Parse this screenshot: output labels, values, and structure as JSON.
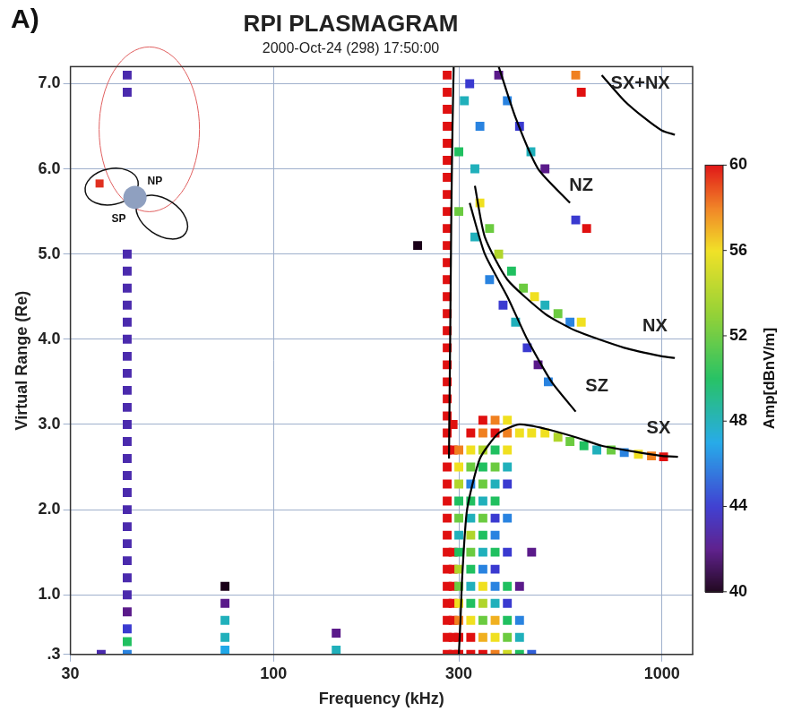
{
  "chart_data": {
    "type": "scatter",
    "panel": "A)",
    "title": "RPI PLASMAGRAM",
    "subtitle": "2000-Oct-24 (298) 17:50:00",
    "x_label": "Frequency (kHz)",
    "y_label": "Virtual Range (Re)",
    "log": "x",
    "grid": true,
    "xlim": [
      30,
      1200
    ],
    "xticks": [
      30,
      100,
      300,
      1000
    ],
    "ylim": [
      0.3,
      7.2
    ],
    "yticks": [
      {
        "value": 0.3,
        "label": ".3"
      },
      {
        "value": 1,
        "label": "1.0"
      },
      {
        "value": 2,
        "label": "2.0"
      },
      {
        "value": 3,
        "label": "3.0"
      },
      {
        "value": 4,
        "label": "4.0"
      },
      {
        "value": 5,
        "label": "5.0"
      },
      {
        "value": 6,
        "label": "6.0"
      },
      {
        "value": 7,
        "label": "7.0"
      }
    ],
    "colorbar": {
      "label": "Amp[dBnV/m]",
      "range": [
        40,
        60
      ],
      "ticks": [
        40,
        44,
        48,
        52,
        56,
        60
      ]
    },
    "cells": [
      [
        36,
        0.3,
        43
      ],
      [
        42,
        0.3,
        46
      ],
      [
        42,
        0.45,
        50
      ],
      [
        42,
        0.6,
        44
      ],
      [
        42,
        0.8,
        42
      ],
      [
        42,
        1.0,
        43
      ],
      [
        42,
        1.2,
        43
      ],
      [
        42,
        1.4,
        43
      ],
      [
        42,
        1.6,
        43
      ],
      [
        42,
        1.8,
        43
      ],
      [
        42,
        2.0,
        43
      ],
      [
        42,
        2.2,
        43
      ],
      [
        42,
        2.4,
        43
      ],
      [
        42,
        2.6,
        43
      ],
      [
        42,
        2.8,
        43
      ],
      [
        42,
        3.0,
        43
      ],
      [
        42,
        3.2,
        43
      ],
      [
        42,
        3.4,
        43
      ],
      [
        42,
        3.6,
        43
      ],
      [
        42,
        3.8,
        43
      ],
      [
        42,
        4.0,
        43
      ],
      [
        42,
        4.2,
        43
      ],
      [
        42,
        4.4,
        43
      ],
      [
        42,
        4.6,
        43
      ],
      [
        42,
        4.8,
        43
      ],
      [
        42,
        5.0,
        43
      ],
      [
        42,
        6.9,
        43
      ],
      [
        42,
        7.1,
        43
      ],
      [
        75,
        1.1,
        40
      ],
      [
        75,
        0.9,
        42
      ],
      [
        75,
        0.7,
        48
      ],
      [
        75,
        0.5,
        48
      ],
      [
        75,
        0.35,
        47
      ],
      [
        145,
        0.55,
        42
      ],
      [
        145,
        0.35,
        48
      ],
      [
        235,
        5.1,
        40
      ],
      [
        280,
        0.3,
        60
      ],
      [
        280,
        0.5,
        60
      ],
      [
        280,
        0.7,
        60
      ],
      [
        280,
        0.9,
        60
      ],
      [
        280,
        1.1,
        60
      ],
      [
        280,
        1.3,
        60
      ],
      [
        280,
        1.5,
        60
      ],
      [
        280,
        1.7,
        60
      ],
      [
        280,
        1.9,
        60
      ],
      [
        280,
        2.1,
        60
      ],
      [
        280,
        2.3,
        60
      ],
      [
        280,
        2.5,
        60
      ],
      [
        280,
        2.7,
        60
      ],
      [
        280,
        2.9,
        60
      ],
      [
        280,
        3.1,
        60
      ],
      [
        280,
        3.3,
        60
      ],
      [
        280,
        3.5,
        60
      ],
      [
        280,
        3.7,
        60
      ],
      [
        280,
        3.9,
        60
      ],
      [
        280,
        4.1,
        60
      ],
      [
        280,
        4.3,
        60
      ],
      [
        280,
        4.5,
        60
      ],
      [
        280,
        4.7,
        60
      ],
      [
        280,
        4.9,
        60
      ],
      [
        280,
        5.1,
        60
      ],
      [
        280,
        5.3,
        60
      ],
      [
        280,
        5.5,
        60
      ],
      [
        280,
        5.7,
        60
      ],
      [
        280,
        5.9,
        60
      ],
      [
        280,
        6.1,
        60
      ],
      [
        280,
        6.3,
        60
      ],
      [
        280,
        6.5,
        60
      ],
      [
        280,
        6.7,
        60
      ],
      [
        280,
        6.9,
        60
      ],
      [
        280,
        7.1,
        60
      ],
      [
        290,
        0.3,
        60
      ],
      [
        290,
        0.5,
        60
      ],
      [
        290,
        0.7,
        60
      ],
      [
        290,
        0.9,
        60
      ],
      [
        290,
        1.1,
        60
      ],
      [
        290,
        1.3,
        60
      ],
      [
        290,
        1.5,
        60
      ],
      [
        290,
        2.7,
        60
      ],
      [
        290,
        3.0,
        60
      ],
      [
        300,
        0.3,
        60
      ],
      [
        322,
        0.3,
        60
      ],
      [
        346,
        0.3,
        60
      ],
      [
        372,
        0.3,
        58
      ],
      [
        400,
        0.3,
        55
      ],
      [
        430,
        0.3,
        50
      ],
      [
        462,
        0.3,
        45
      ],
      [
        300,
        0.5,
        60
      ],
      [
        322,
        0.5,
        60
      ],
      [
        346,
        0.5,
        57
      ],
      [
        372,
        0.5,
        56
      ],
      [
        400,
        0.5,
        52
      ],
      [
        430,
        0.5,
        48
      ],
      [
        300,
        0.7,
        58
      ],
      [
        322,
        0.7,
        56
      ],
      [
        346,
        0.7,
        52
      ],
      [
        372,
        0.7,
        57
      ],
      [
        400,
        0.7,
        50
      ],
      [
        430,
        0.7,
        46
      ],
      [
        300,
        0.9,
        56
      ],
      [
        322,
        0.9,
        50
      ],
      [
        346,
        0.9,
        54
      ],
      [
        372,
        0.9,
        48
      ],
      [
        400,
        0.9,
        44
      ],
      [
        300,
        1.1,
        52
      ],
      [
        322,
        1.1,
        48
      ],
      [
        346,
        1.1,
        56
      ],
      [
        372,
        1.1,
        46
      ],
      [
        400,
        1.1,
        50
      ],
      [
        430,
        1.1,
        42
      ],
      [
        300,
        1.3,
        54
      ],
      [
        322,
        1.3,
        50
      ],
      [
        346,
        1.3,
        46
      ],
      [
        372,
        1.3,
        44
      ],
      [
        300,
        1.5,
        50
      ],
      [
        322,
        1.5,
        52
      ],
      [
        346,
        1.5,
        48
      ],
      [
        372,
        1.5,
        50
      ],
      [
        400,
        1.5,
        44
      ],
      [
        462,
        1.5,
        42
      ],
      [
        300,
        1.7,
        48
      ],
      [
        322,
        1.7,
        54
      ],
      [
        346,
        1.7,
        50
      ],
      [
        372,
        1.7,
        46
      ],
      [
        300,
        1.9,
        52
      ],
      [
        322,
        1.9,
        48
      ],
      [
        346,
        1.9,
        52
      ],
      [
        372,
        1.9,
        44
      ],
      [
        400,
        1.9,
        46
      ],
      [
        300,
        2.1,
        50
      ],
      [
        322,
        2.1,
        50
      ],
      [
        346,
        2.1,
        48
      ],
      [
        372,
        2.1,
        50
      ],
      [
        300,
        2.3,
        54
      ],
      [
        322,
        2.3,
        46
      ],
      [
        346,
        2.3,
        52
      ],
      [
        372,
        2.3,
        48
      ],
      [
        400,
        2.3,
        44
      ],
      [
        300,
        2.5,
        56
      ],
      [
        322,
        2.5,
        52
      ],
      [
        346,
        2.5,
        50
      ],
      [
        372,
        2.5,
        52
      ],
      [
        400,
        2.5,
        48
      ],
      [
        300,
        2.7,
        58
      ],
      [
        322,
        2.7,
        56
      ],
      [
        346,
        2.7,
        54
      ],
      [
        372,
        2.7,
        50
      ],
      [
        400,
        2.7,
        56
      ],
      [
        322,
        2.9,
        60
      ],
      [
        346,
        2.9,
        58
      ],
      [
        372,
        2.9,
        60
      ],
      [
        400,
        2.9,
        58
      ],
      [
        430,
        2.9,
        56
      ],
      [
        462,
        2.9,
        56
      ],
      [
        346,
        3.05,
        60
      ],
      [
        372,
        3.05,
        58
      ],
      [
        400,
        3.05,
        56
      ],
      [
        500,
        2.9,
        56
      ],
      [
        540,
        2.85,
        54
      ],
      [
        580,
        2.8,
        52
      ],
      [
        630,
        2.75,
        50
      ],
      [
        680,
        2.7,
        48
      ],
      [
        740,
        2.7,
        52
      ],
      [
        800,
        2.67,
        46
      ],
      [
        870,
        2.65,
        56
      ],
      [
        940,
        2.63,
        58
      ],
      [
        1010,
        2.62,
        60
      ],
      [
        340,
        5.6,
        56
      ],
      [
        360,
        5.3,
        52
      ],
      [
        380,
        5.0,
        54
      ],
      [
        410,
        4.8,
        50
      ],
      [
        440,
        4.6,
        52
      ],
      [
        470,
        4.5,
        56
      ],
      [
        500,
        4.4,
        48
      ],
      [
        540,
        4.3,
        52
      ],
      [
        580,
        4.2,
        46
      ],
      [
        620,
        4.2,
        56
      ],
      [
        330,
        5.2,
        48
      ],
      [
        360,
        4.7,
        46
      ],
      [
        390,
        4.4,
        44
      ],
      [
        420,
        4.2,
        48
      ],
      [
        450,
        3.9,
        44
      ],
      [
        480,
        3.7,
        42
      ],
      [
        510,
        3.5,
        46
      ],
      [
        400,
        6.8,
        46
      ],
      [
        430,
        6.5,
        44
      ],
      [
        460,
        6.2,
        48
      ],
      [
        500,
        6.0,
        42
      ],
      [
        300,
        5.5,
        52
      ],
      [
        300,
        6.2,
        50
      ],
      [
        310,
        6.8,
        48
      ],
      [
        320,
        7.0,
        44
      ],
      [
        340,
        6.5,
        46
      ],
      [
        330,
        6.0,
        48
      ],
      [
        380,
        7.1,
        42
      ],
      [
        600,
        7.1,
        58
      ],
      [
        620,
        6.9,
        60
      ],
      [
        640,
        5.3,
        60
      ],
      [
        600,
        5.4,
        44
      ]
    ],
    "series": [
      {
        "color": "#000000",
        "x": [
          283,
          285,
          287,
          289,
          291
        ],
        "values": [
          2.6,
          4.0,
          5.5,
          6.5,
          7.2
        ]
      },
      {
        "name": "SX",
        "color": "#000000",
        "x": [
          300,
          303,
          306,
          315,
          340,
          380,
          430,
          500,
          600,
          700,
          850,
          1000,
          1100
        ],
        "values": [
          0.3,
          0.7,
          1.2,
          2.0,
          2.6,
          2.9,
          3.0,
          2.95,
          2.85,
          2.75,
          2.68,
          2.63,
          2.62
        ]
      },
      {
        "name": "SZ",
        "color": "#000000",
        "x": [
          320,
          350,
          400,
          450,
          520,
          600
        ],
        "values": [
          5.6,
          5.0,
          4.5,
          4.0,
          3.5,
          3.15
        ]
      },
      {
        "name": "NX",
        "color": "#000000",
        "x": [
          330,
          350,
          400,
          500,
          600,
          800,
          1000,
          1080
        ],
        "values": [
          5.8,
          5.2,
          4.7,
          4.3,
          4.1,
          3.9,
          3.8,
          3.78
        ]
      },
      {
        "name": "NZ",
        "color": "#000000",
        "x": [
          380,
          420,
          480,
          580
        ],
        "values": [
          7.2,
          6.6,
          6.0,
          5.6
        ]
      },
      {
        "name": "SX+NX",
        "color": "#000000",
        "x": [
          700,
          800,
          900,
          1000,
          1080
        ],
        "values": [
          7.1,
          6.8,
          6.6,
          6.45,
          6.4
        ]
      }
    ],
    "annotations": [
      {
        "text": "SX+NX",
        "x": 880,
        "y": 7.0
      },
      {
        "text": "NZ",
        "x": 620,
        "y": 5.8
      },
      {
        "text": "NX",
        "x": 960,
        "y": 4.15
      },
      {
        "text": "SZ",
        "x": 680,
        "y": 3.45
      },
      {
        "text": "SX",
        "x": 980,
        "y": 2.95
      }
    ],
    "inset_labels": [
      "NP",
      "SP"
    ]
  }
}
